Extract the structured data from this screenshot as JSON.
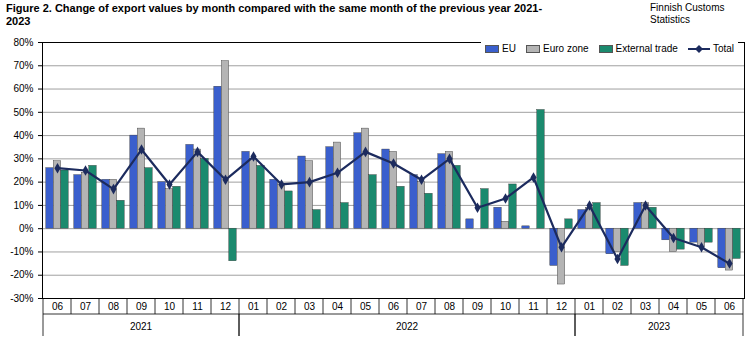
{
  "chart_data": {
    "type": "bar",
    "title": "Figure 2. Change of export values by month compared with the same month of the previous year 2021-2023",
    "source": "Finnish Customs Statistics",
    "categories": [
      "06",
      "07",
      "08",
      "09",
      "10",
      "11",
      "12",
      "01",
      "02",
      "03",
      "04",
      "05",
      "06",
      "07",
      "08",
      "09",
      "10",
      "11",
      "12",
      "01",
      "02",
      "03",
      "04",
      "05",
      "06"
    ],
    "year_groups": [
      {
        "label": "2021",
        "count": 7
      },
      {
        "label": "2022",
        "count": 12
      },
      {
        "label": "2023",
        "count": 6
      }
    ],
    "series": [
      {
        "name": "EU",
        "type": "bar",
        "color": "#3a5fcd",
        "values": [
          26,
          23,
          21,
          40,
          20,
          36,
          61,
          33,
          21,
          31,
          35,
          41,
          34,
          23,
          32,
          4,
          9,
          1,
          -16,
          8,
          -11,
          11,
          -5,
          -6,
          -17
        ]
      },
      {
        "name": "Euro zone",
        "type": "bar",
        "color": "#b4b4b4",
        "values": [
          29,
          24,
          21,
          43,
          17,
          34,
          72,
          30,
          19,
          29,
          37,
          43,
          33,
          20,
          33,
          0,
          3,
          0,
          -24,
          9,
          -10,
          11,
          -10,
          -8,
          -18
        ]
      },
      {
        "name": "External trade",
        "type": "bar",
        "color": "#1b8a6e",
        "values": [
          25,
          27,
          12,
          26,
          18,
          30,
          -14,
          27,
          16,
          8,
          11,
          23,
          18,
          15,
          27,
          17,
          19,
          51,
          4,
          11,
          -16,
          9,
          -9,
          -6,
          -13
        ]
      },
      {
        "name": "Total",
        "type": "line",
        "color": "#1c2b5e",
        "marker": "diamond",
        "line_style": "solid",
        "values": [
          26,
          25,
          17,
          34,
          19,
          33,
          21,
          31,
          19,
          20,
          24,
          33,
          28,
          21,
          30,
          9,
          13,
          22,
          -8,
          10,
          -13,
          10,
          -4,
          -8,
          -15
        ]
      }
    ],
    "ylim": [
      -30,
      80
    ],
    "yticks": [
      {
        "value": -30,
        "label": "-30%"
      },
      {
        "value": -20,
        "label": "-20%"
      },
      {
        "value": -10,
        "label": "-10%"
      },
      {
        "value": 0,
        "label": "0%"
      },
      {
        "value": 10,
        "label": "10%"
      },
      {
        "value": 20,
        "label": "20%"
      },
      {
        "value": 30,
        "label": "30%"
      },
      {
        "value": 40,
        "label": "40%"
      },
      {
        "value": 50,
        "label": "50%"
      },
      {
        "value": 60,
        "label": "60%"
      },
      {
        "value": 70,
        "label": "70%"
      },
      {
        "value": 80,
        "label": "80%"
      }
    ],
    "grid": true,
    "legend": "top-right"
  }
}
